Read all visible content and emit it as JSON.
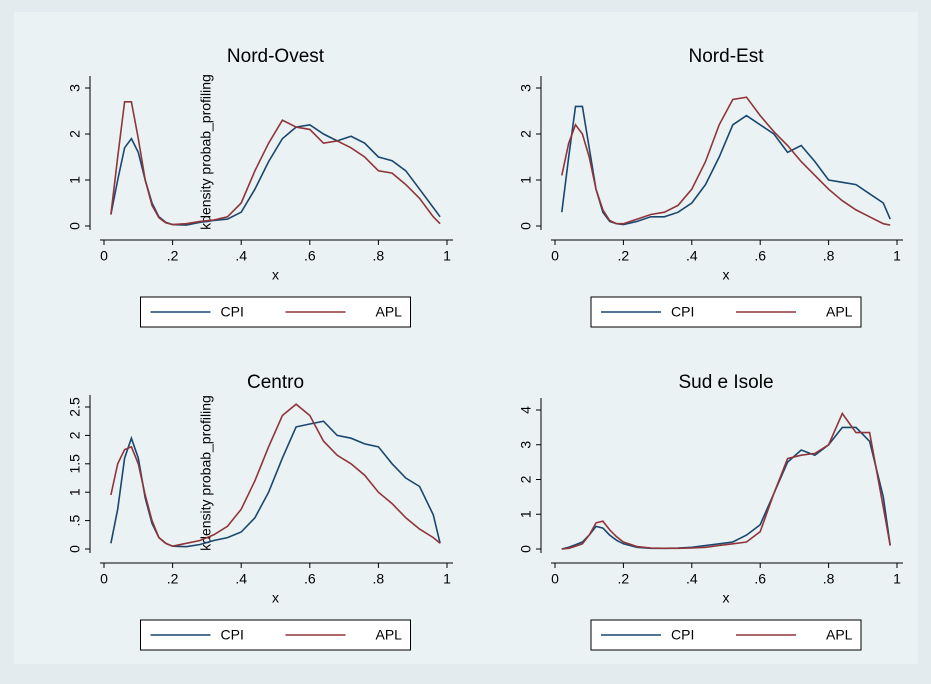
{
  "chart_data": [
    {
      "type": "line",
      "title": "Nord-Ovest",
      "xlabel": "x",
      "ylabel": "kdensity probab_profiling",
      "x": [
        0.02,
        0.04,
        0.06,
        0.08,
        0.1,
        0.12,
        0.14,
        0.16,
        0.18,
        0.2,
        0.24,
        0.28,
        0.32,
        0.36,
        0.4,
        0.44,
        0.48,
        0.52,
        0.56,
        0.6,
        0.64,
        0.68,
        0.72,
        0.76,
        0.8,
        0.84,
        0.88,
        0.92,
        0.96,
        0.98
      ],
      "series": [
        {
          "name": "CPI",
          "color": "#1a476f",
          "values": [
            0.25,
            1.0,
            1.7,
            1.9,
            1.6,
            1.0,
            0.5,
            0.2,
            0.08,
            0.03,
            0.02,
            0.08,
            0.12,
            0.15,
            0.3,
            0.8,
            1.4,
            1.9,
            2.15,
            2.2,
            2.0,
            1.85,
            1.95,
            1.8,
            1.5,
            1.42,
            1.2,
            0.8,
            0.4,
            0.2
          ]
        },
        {
          "name": "APL",
          "color": "#90353b",
          "values": [
            0.25,
            1.5,
            2.7,
            2.7,
            1.9,
            1.0,
            0.45,
            0.18,
            0.07,
            0.03,
            0.05,
            0.1,
            0.13,
            0.2,
            0.5,
            1.2,
            1.8,
            2.3,
            2.15,
            2.1,
            1.8,
            1.85,
            1.7,
            1.5,
            1.2,
            1.15,
            0.9,
            0.6,
            0.2,
            0.05
          ]
        }
      ],
      "xlim": [
        0,
        1
      ],
      "xticks": [
        0,
        {
          "value": 0.2,
          "label": ".2"
        },
        {
          "value": 0.4,
          "label": ".4"
        },
        {
          "value": 0.6,
          "label": ".6"
        },
        {
          "value": 0.8,
          "label": ".8"
        },
        1
      ],
      "ylim": [
        0,
        3
      ],
      "yticks": [
        0,
        1,
        2,
        3
      ],
      "legend": "bottom"
    },
    {
      "type": "line",
      "title": "Nord-Est",
      "xlabel": "x",
      "x": [
        0.02,
        0.04,
        0.06,
        0.08,
        0.1,
        0.12,
        0.14,
        0.16,
        0.18,
        0.2,
        0.24,
        0.28,
        0.32,
        0.36,
        0.4,
        0.44,
        0.48,
        0.52,
        0.56,
        0.6,
        0.64,
        0.68,
        0.72,
        0.76,
        0.8,
        0.84,
        0.88,
        0.92,
        0.96,
        0.98
      ],
      "series": [
        {
          "name": "CPI",
          "color": "#1a476f",
          "values": [
            0.3,
            1.5,
            2.6,
            2.6,
            1.7,
            0.8,
            0.3,
            0.1,
            0.05,
            0.03,
            0.1,
            0.2,
            0.2,
            0.3,
            0.5,
            0.9,
            1.5,
            2.2,
            2.4,
            2.2,
            2.0,
            1.6,
            1.75,
            1.4,
            1.0,
            0.95,
            0.9,
            0.7,
            0.5,
            0.15
          ]
        },
        {
          "name": "APL",
          "color": "#90353b",
          "values": [
            1.1,
            1.8,
            2.2,
            2.0,
            1.5,
            0.8,
            0.35,
            0.12,
            0.05,
            0.05,
            0.15,
            0.25,
            0.3,
            0.45,
            0.8,
            1.4,
            2.2,
            2.75,
            2.8,
            2.4,
            2.05,
            1.75,
            1.4,
            1.1,
            0.8,
            0.55,
            0.35,
            0.2,
            0.05,
            0.02
          ]
        }
      ],
      "xlim": [
        0,
        1
      ],
      "xticks": [
        0,
        {
          "value": 0.2,
          "label": ".2"
        },
        {
          "value": 0.4,
          "label": ".4"
        },
        {
          "value": 0.6,
          "label": ".6"
        },
        {
          "value": 0.8,
          "label": ".8"
        },
        1
      ],
      "ylim": [
        0,
        3
      ],
      "yticks": [
        0,
        1,
        2,
        3
      ],
      "legend": "bottom"
    },
    {
      "type": "line",
      "title": "Centro",
      "xlabel": "x",
      "ylabel": "kdensity probab_profiling",
      "x": [
        0.02,
        0.04,
        0.06,
        0.08,
        0.1,
        0.12,
        0.14,
        0.16,
        0.18,
        0.2,
        0.24,
        0.28,
        0.32,
        0.36,
        0.4,
        0.44,
        0.48,
        0.52,
        0.56,
        0.6,
        0.64,
        0.68,
        0.72,
        0.76,
        0.8,
        0.84,
        0.88,
        0.92,
        0.96,
        0.98
      ],
      "series": [
        {
          "name": "CPI",
          "color": "#1a476f",
          "values": [
            0.1,
            0.7,
            1.6,
            1.95,
            1.6,
            0.9,
            0.45,
            0.2,
            0.1,
            0.05,
            0.04,
            0.08,
            0.15,
            0.2,
            0.3,
            0.55,
            1.0,
            1.6,
            2.15,
            2.2,
            2.25,
            2.0,
            1.95,
            1.85,
            1.8,
            1.5,
            1.25,
            1.1,
            0.6,
            0.1
          ]
        },
        {
          "name": "APL",
          "color": "#90353b",
          "values": [
            0.95,
            1.5,
            1.75,
            1.8,
            1.5,
            0.95,
            0.5,
            0.2,
            0.1,
            0.05,
            0.1,
            0.15,
            0.25,
            0.4,
            0.7,
            1.2,
            1.8,
            2.35,
            2.55,
            2.35,
            1.9,
            1.65,
            1.5,
            1.3,
            1.0,
            0.8,
            0.55,
            0.35,
            0.2,
            0.1
          ]
        }
      ],
      "xlim": [
        0,
        1
      ],
      "xticks": [
        0,
        {
          "value": 0.2,
          "label": ".2"
        },
        {
          "value": 0.4,
          "label": ".4"
        },
        {
          "value": 0.6,
          "label": ".6"
        },
        {
          "value": 0.8,
          "label": ".8"
        },
        1
      ],
      "ylim": [
        0,
        2.5
      ],
      "yticks": [
        0,
        {
          "value": 0.5,
          "label": ".5"
        },
        1,
        1.5,
        2,
        2.5
      ],
      "legend": "bottom"
    },
    {
      "type": "line",
      "title": "Sud e Isole",
      "xlabel": "x",
      "x": [
        0.02,
        0.04,
        0.06,
        0.08,
        0.1,
        0.12,
        0.14,
        0.16,
        0.18,
        0.2,
        0.24,
        0.28,
        0.32,
        0.36,
        0.4,
        0.44,
        0.48,
        0.52,
        0.56,
        0.6,
        0.64,
        0.68,
        0.72,
        0.76,
        0.8,
        0.84,
        0.88,
        0.92,
        0.96,
        0.98
      ],
      "series": [
        {
          "name": "CPI",
          "color": "#1a476f",
          "values": [
            0,
            0.05,
            0.12,
            0.2,
            0.4,
            0.65,
            0.6,
            0.4,
            0.25,
            0.15,
            0.05,
            0.02,
            0.02,
            0.03,
            0.05,
            0.1,
            0.15,
            0.2,
            0.4,
            0.7,
            1.6,
            2.5,
            2.85,
            2.7,
            3.0,
            3.5,
            3.5,
            3.1,
            1.5,
            0.1
          ]
        },
        {
          "name": "APL",
          "color": "#90353b",
          "values": [
            0,
            0.02,
            0.08,
            0.15,
            0.4,
            0.75,
            0.8,
            0.55,
            0.35,
            0.2,
            0.07,
            0.03,
            0.02,
            0.02,
            0.03,
            0.05,
            0.1,
            0.15,
            0.2,
            0.5,
            1.6,
            2.6,
            2.7,
            2.75,
            3.0,
            3.9,
            3.35,
            3.35,
            1.2,
            0.1
          ]
        }
      ],
      "xlim": [
        0,
        1
      ],
      "xticks": [
        0,
        {
          "value": 0.2,
          "label": ".2"
        },
        {
          "value": 0.4,
          "label": ".4"
        },
        {
          "value": 0.6,
          "label": ".6"
        },
        {
          "value": 0.8,
          "label": ".8"
        },
        1
      ],
      "ylim": [
        0,
        4
      ],
      "yticks": [
        0,
        1,
        2,
        3,
        4
      ],
      "legend": "bottom"
    }
  ]
}
